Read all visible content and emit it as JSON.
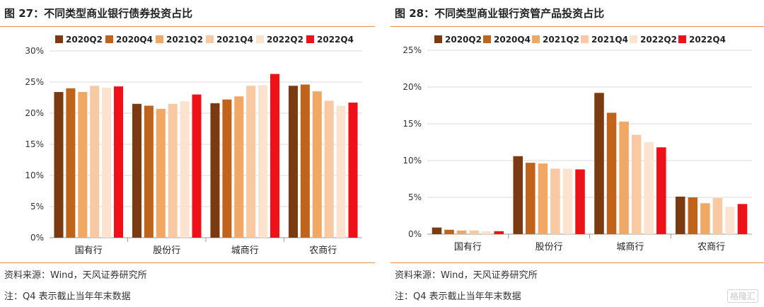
{
  "panels": [
    {
      "title": "图 27：不同类型商业银行债券投资占比",
      "source": "资料来源：Wind，天风证券研究所",
      "note": "注：Q4 表示截止当年年末数据"
    },
    {
      "title": "图 28：不同类型商业银行资管产品投资占比",
      "source": "资料来源：Wind，天风证券研究所",
      "note": "注：Q4 表示截止当年年末数据"
    }
  ],
  "watermark": "格隆汇",
  "chart_data": [
    {
      "type": "bar",
      "title": "",
      "categories": [
        "国有行",
        "股份行",
        "城商行",
        "农商行"
      ],
      "series": [
        {
          "name": "2020Q2",
          "color": "#7b3a0f",
          "values": [
            23.4,
            21.5,
            21.6,
            24.4
          ]
        },
        {
          "name": "2020Q4",
          "color": "#c0641c",
          "values": [
            24.0,
            21.2,
            22.2,
            24.6
          ]
        },
        {
          "name": "2021Q2",
          "color": "#f0a864",
          "values": [
            23.4,
            20.7,
            22.7,
            23.5
          ]
        },
        {
          "name": "2021Q4",
          "color": "#f8c9a3",
          "values": [
            24.4,
            21.5,
            24.4,
            22.0
          ]
        },
        {
          "name": "2022Q2",
          "color": "#fbe3cf",
          "values": [
            24.1,
            21.9,
            24.5,
            21.2
          ]
        },
        {
          "name": "2022Q4",
          "color": "#ef1018",
          "values": [
            24.3,
            23.0,
            26.3,
            21.7
          ]
        }
      ],
      "ylim": [
        0,
        30
      ],
      "yticks": [
        0,
        5,
        10,
        15,
        20,
        25,
        30
      ],
      "ytick_labels": [
        "0%",
        "5%",
        "10%",
        "15%",
        "20%",
        "25%",
        "30%"
      ],
      "grid": true,
      "legend": "top"
    },
    {
      "type": "bar",
      "title": "",
      "categories": [
        "国有行",
        "股份行",
        "城商行",
        "农商行"
      ],
      "series": [
        {
          "name": "2020Q2",
          "color": "#7b3a0f",
          "values": [
            0.9,
            10.6,
            19.2,
            5.1
          ]
        },
        {
          "name": "2020Q4",
          "color": "#c0641c",
          "values": [
            0.6,
            9.7,
            16.5,
            5.0
          ]
        },
        {
          "name": "2021Q2",
          "color": "#f0a864",
          "values": [
            0.5,
            9.6,
            15.3,
            4.2
          ]
        },
        {
          "name": "2021Q4",
          "color": "#f8c9a3",
          "values": [
            0.5,
            8.9,
            13.5,
            4.9
          ]
        },
        {
          "name": "2022Q2",
          "color": "#fbe3cf",
          "values": [
            0.4,
            8.9,
            12.5,
            3.7
          ]
        },
        {
          "name": "2022Q4",
          "color": "#ef1018",
          "values": [
            0.4,
            8.8,
            11.8,
            4.1
          ]
        }
      ],
      "ylim": [
        0,
        25
      ],
      "yticks": [
        0,
        5,
        10,
        15,
        20,
        25
      ],
      "ytick_labels": [
        "0%",
        "5%",
        "10%",
        "15%",
        "20%",
        "25%"
      ],
      "grid": true,
      "legend": "top"
    }
  ]
}
